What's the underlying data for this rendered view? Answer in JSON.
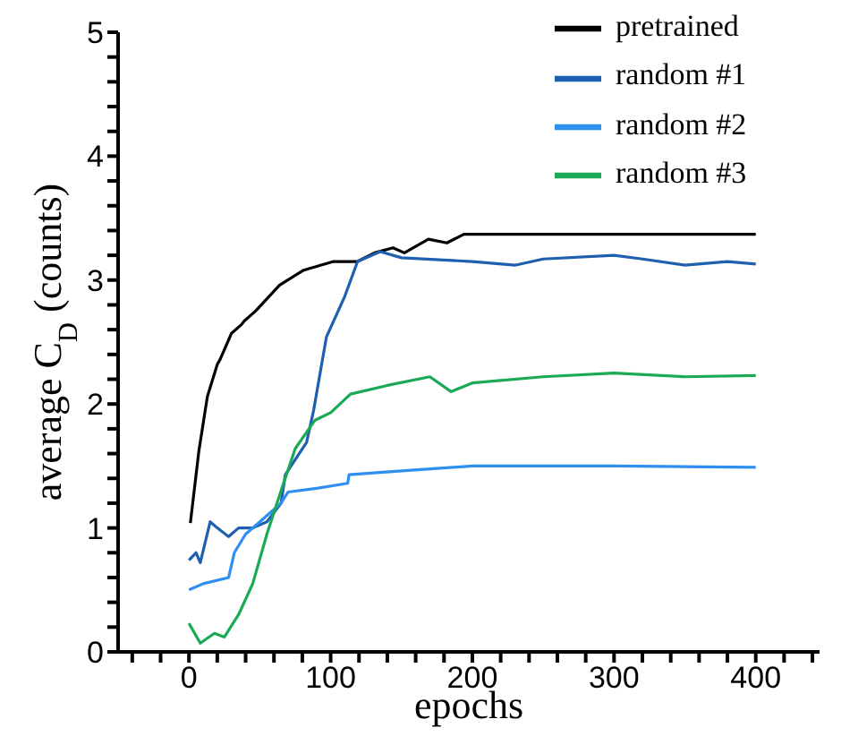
{
  "chart_data": {
    "type": "line",
    "xlabel": "epochs",
    "ylabel": "average C$_{D}$ (counts)",
    "xlim": [
      -50,
      445
    ],
    "ylim": [
      0,
      5
    ],
    "xticks": [
      {
        "value": -40,
        "label": null
      },
      {
        "value": -20,
        "label": null
      },
      0,
      {
        "value": 20,
        "label": null
      },
      {
        "value": 40,
        "label": null
      },
      {
        "value": 60,
        "label": null
      },
      {
        "value": 80,
        "label": null
      },
      100,
      {
        "value": 120,
        "label": null
      },
      {
        "value": 140,
        "label": null
      },
      {
        "value": 160,
        "label": null
      },
      {
        "value": 180,
        "label": null
      },
      200,
      {
        "value": 220,
        "label": null
      },
      {
        "value": 240,
        "label": null
      },
      {
        "value": 260,
        "label": null
      },
      {
        "value": 280,
        "label": null
      },
      300,
      {
        "value": 320,
        "label": null
      },
      {
        "value": 340,
        "label": null
      },
      {
        "value": 360,
        "label": null
      },
      {
        "value": 380,
        "label": null
      },
      400,
      {
        "value": 420,
        "label": null
      },
      {
        "value": 440,
        "label": null
      }
    ],
    "yticks": [
      0,
      {
        "value": 0.2,
        "label": null
      },
      {
        "value": 0.4,
        "label": null
      },
      {
        "value": 0.6,
        "label": null
      },
      {
        "value": 0.8,
        "label": null
      },
      1,
      {
        "value": 1.2,
        "label": null
      },
      {
        "value": 1.4,
        "label": null
      },
      {
        "value": 1.6,
        "label": null
      },
      {
        "value": 1.8,
        "label": null
      },
      2,
      {
        "value": 2.2,
        "label": null
      },
      {
        "value": 2.4,
        "label": null
      },
      {
        "value": 2.6,
        "label": null
      },
      {
        "value": 2.8,
        "label": null
      },
      3,
      {
        "value": 3.2,
        "label": null
      },
      {
        "value": 3.4,
        "label": null
      },
      {
        "value": 3.6,
        "label": null
      },
      {
        "value": 3.8,
        "label": null
      },
      4,
      {
        "value": 4.2,
        "label": null
      },
      {
        "value": 4.4,
        "label": null
      },
      {
        "value": 4.6,
        "label": null
      },
      {
        "value": 4.8,
        "label": null
      },
      5
    ],
    "grid": false,
    "legend": "top right",
    "line_style": "solid",
    "series": [
      {
        "name": "pretrained",
        "color": "#000000",
        "x": [
          1,
          7,
          13,
          20,
          22,
          30,
          37,
          39,
          47,
          64,
          81,
          102,
          119,
          131,
          144,
          152,
          169,
          182,
          194,
          250,
          300,
          350,
          400
        ],
        "values": [
          1.04,
          1.62,
          2.06,
          2.32,
          2.36,
          2.57,
          2.64,
          2.67,
          2.75,
          2.96,
          3.08,
          3.15,
          3.15,
          3.22,
          3.26,
          3.22,
          3.33,
          3.3,
          3.37,
          3.37,
          3.37,
          3.37,
          3.37
        ]
      },
      {
        "name": "random #1",
        "color": "#1f5fb0",
        "x": [
          0,
          5,
          8,
          15,
          20,
          28,
          35,
          45,
          55,
          65,
          68,
          83,
          88,
          97,
          110,
          119,
          135,
          150,
          200,
          230,
          250,
          300,
          320,
          350,
          380,
          400
        ],
        "values": [
          0.74,
          0.8,
          0.72,
          1.05,
          1.0,
          0.93,
          1.0,
          1.0,
          1.05,
          1.2,
          1.43,
          1.69,
          1.95,
          2.54,
          2.87,
          3.15,
          3.23,
          3.18,
          3.15,
          3.12,
          3.17,
          3.2,
          3.17,
          3.12,
          3.15,
          3.13
        ]
      },
      {
        "name": "random #2",
        "color": "#2f8ff0",
        "x": [
          0,
          10,
          28,
          32,
          40,
          50,
          65,
          70,
          90,
          112,
          113,
          150,
          200,
          300,
          400
        ],
        "values": [
          0.5,
          0.55,
          0.6,
          0.8,
          0.95,
          1.05,
          1.2,
          1.29,
          1.32,
          1.36,
          1.43,
          1.46,
          1.5,
          1.5,
          1.49
        ]
      },
      {
        "name": "random #3",
        "color": "#1aaa55",
        "x": [
          0,
          8,
          18,
          25,
          35,
          45,
          55,
          65,
          75,
          89,
          100,
          114,
          140,
          170,
          185,
          200,
          250,
          300,
          350,
          400
        ],
        "values": [
          0.23,
          0.07,
          0.15,
          0.12,
          0.3,
          0.55,
          0.95,
          1.3,
          1.64,
          1.87,
          1.93,
          2.08,
          2.15,
          2.22,
          2.1,
          2.17,
          2.22,
          2.25,
          2.22,
          2.23
        ]
      }
    ]
  }
}
